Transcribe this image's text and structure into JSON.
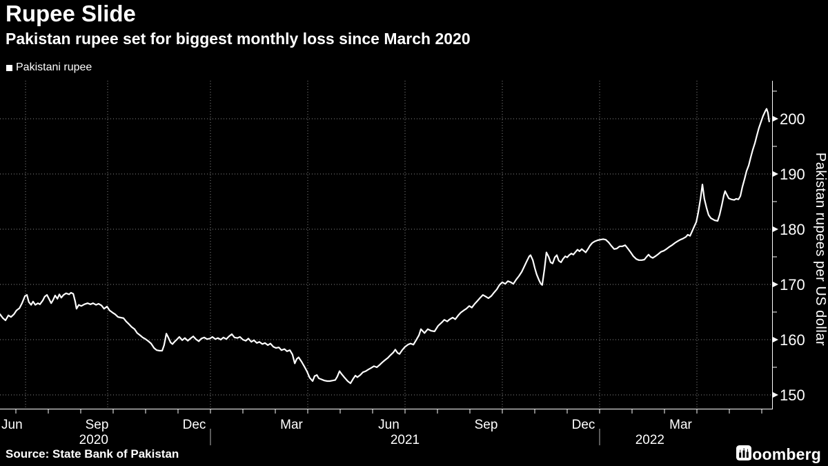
{
  "title": "Rupee Slide",
  "subtitle": "Pakistan rupee set for biggest monthly loss since March 2020",
  "legend": {
    "label": "Pakistani rupee",
    "marker_color": "#ffffff"
  },
  "source": "Source: State Bank of Pakistan",
  "brand": {
    "name": "Bloomberg",
    "logo": "bloomberg-terminal-mark"
  },
  "colors": {
    "background": "#000000",
    "line": "#ffffff",
    "grid": "#8c8c8c",
    "axis": "#ffffff",
    "text": "#ffffff"
  },
  "chart_data": {
    "type": "line",
    "series_name": "Pakistani rupee",
    "title": "Rupee Slide",
    "ylabel": "Pakistan rupees per US dollar",
    "xlabel": "",
    "x_unit": "months since 2020-06-01 (0 = Jun 1 2020, 7 = Jan 1 2021, 19 = Jan 1 2022)",
    "xlim_t": [
      0.51,
      24.34
    ],
    "ylim": [
      147.5,
      206.9
    ],
    "grid": "dotted",
    "legend_position": "top-left",
    "y_ticks": [
      150,
      160,
      170,
      180,
      190,
      200
    ],
    "y_minor_ticks": [
      155,
      165,
      175,
      185,
      195,
      205
    ],
    "x_axis": {
      "month_labels": [
        {
          "label": "Jun",
          "t": 0.5
        },
        {
          "label": "Sep",
          "t": 3.5
        },
        {
          "label": "Dec",
          "t": 6.5
        },
        {
          "label": "Mar",
          "t": 9.5
        },
        {
          "label": "Jun",
          "t": 12.5
        },
        {
          "label": "Sep",
          "t": 15.5
        },
        {
          "label": "Dec",
          "t": 18.5
        },
        {
          "label": "Mar",
          "t": 21.5
        }
      ],
      "year_labels": [
        {
          "label": "2020",
          "t": 3.4
        },
        {
          "label": "2021",
          "t": 13.0
        },
        {
          "label": "2022",
          "t": 20.55
        }
      ],
      "year_dividers_t": [
        7,
        19
      ],
      "quarter_gridlines_t": [
        1,
        4,
        7,
        10,
        13,
        16,
        19,
        22
      ],
      "month_ticks_t": [
        1,
        2,
        3,
        4,
        5,
        6,
        7,
        8,
        9,
        10,
        11,
        12,
        13,
        14,
        15,
        16,
        17,
        18,
        19,
        20,
        21,
        22,
        23,
        24
      ]
    },
    "points": [
      [
        0.51,
        164.6
      ],
      [
        0.6,
        163.9
      ],
      [
        0.68,
        163.5
      ],
      [
        0.77,
        164.4
      ],
      [
        0.85,
        164.1
      ],
      [
        0.94,
        164.6
      ],
      [
        1.02,
        165.3
      ],
      [
        1.11,
        165.7
      ],
      [
        1.19,
        166.6
      ],
      [
        1.28,
        167.9
      ],
      [
        1.34,
        168.1
      ],
      [
        1.4,
        166.8
      ],
      [
        1.47,
        166.3
      ],
      [
        1.53,
        166.9
      ],
      [
        1.6,
        166.3
      ],
      [
        1.68,
        166.6
      ],
      [
        1.74,
        166.4
      ],
      [
        1.83,
        167.1
      ],
      [
        1.89,
        167.8
      ],
      [
        1.96,
        168.1
      ],
      [
        2.02,
        167.4
      ],
      [
        2.09,
        166.6
      ],
      [
        2.15,
        167.2
      ],
      [
        2.21,
        168.0
      ],
      [
        2.28,
        167.4
      ],
      [
        2.34,
        168.2
      ],
      [
        2.4,
        167.6
      ],
      [
        2.47,
        168.1
      ],
      [
        2.55,
        168.4
      ],
      [
        2.64,
        168.2
      ],
      [
        2.7,
        168.5
      ],
      [
        2.77,
        168.3
      ],
      [
        2.83,
        166.9
      ],
      [
        2.87,
        165.6
      ],
      [
        2.94,
        166.3
      ],
      [
        3.02,
        166.1
      ],
      [
        3.11,
        166.4
      ],
      [
        3.21,
        166.6
      ],
      [
        3.3,
        166.4
      ],
      [
        3.38,
        166.6
      ],
      [
        3.47,
        166.3
      ],
      [
        3.55,
        166.5
      ],
      [
        3.64,
        166.2
      ],
      [
        3.72,
        165.6
      ],
      [
        3.81,
        166.0
      ],
      [
        3.89,
        165.3
      ],
      [
        3.98,
        164.9
      ],
      [
        4.06,
        164.6
      ],
      [
        4.15,
        164.1
      ],
      [
        4.23,
        164.0
      ],
      [
        4.32,
        163.9
      ],
      [
        4.4,
        163.3
      ],
      [
        4.49,
        162.8
      ],
      [
        4.57,
        162.3
      ],
      [
        4.66,
        161.9
      ],
      [
        4.74,
        161.2
      ],
      [
        4.83,
        160.8
      ],
      [
        4.91,
        160.4
      ],
      [
        5.0,
        160.1
      ],
      [
        5.09,
        159.7
      ],
      [
        5.17,
        159.3
      ],
      [
        5.26,
        158.5
      ],
      [
        5.34,
        158.1
      ],
      [
        5.43,
        158.0
      ],
      [
        5.51,
        158.0
      ],
      [
        5.57,
        159.0
      ],
      [
        5.64,
        161.1
      ],
      [
        5.7,
        160.4
      ],
      [
        5.77,
        159.5
      ],
      [
        5.83,
        159.2
      ],
      [
        5.89,
        159.6
      ],
      [
        5.96,
        160.0
      ],
      [
        6.04,
        160.5
      ],
      [
        6.13,
        159.9
      ],
      [
        6.21,
        160.3
      ],
      [
        6.3,
        159.8
      ],
      [
        6.38,
        160.2
      ],
      [
        6.47,
        160.6
      ],
      [
        6.55,
        160.1
      ],
      [
        6.64,
        159.7
      ],
      [
        6.72,
        160.2
      ],
      [
        6.81,
        160.4
      ],
      [
        6.89,
        160.1
      ],
      [
        6.98,
        160.2
      ],
      [
        7.06,
        160.5
      ],
      [
        7.15,
        160.1
      ],
      [
        7.23,
        160.3
      ],
      [
        7.32,
        160.0
      ],
      [
        7.4,
        160.4
      ],
      [
        7.49,
        160.1
      ],
      [
        7.57,
        160.6
      ],
      [
        7.66,
        161.0
      ],
      [
        7.74,
        160.4
      ],
      [
        7.83,
        160.3
      ],
      [
        7.91,
        160.5
      ],
      [
        8.0,
        160.0
      ],
      [
        8.09,
        159.8
      ],
      [
        8.17,
        160.2
      ],
      [
        8.26,
        159.6
      ],
      [
        8.34,
        159.9
      ],
      [
        8.43,
        159.4
      ],
      [
        8.51,
        159.6
      ],
      [
        8.6,
        159.2
      ],
      [
        8.68,
        159.4
      ],
      [
        8.77,
        159.0
      ],
      [
        8.85,
        159.3
      ],
      [
        8.94,
        158.7
      ],
      [
        9.02,
        158.5
      ],
      [
        9.11,
        158.6
      ],
      [
        9.19,
        158.1
      ],
      [
        9.28,
        158.3
      ],
      [
        9.36,
        157.9
      ],
      [
        9.45,
        158.1
      ],
      [
        9.53,
        157.3
      ],
      [
        9.6,
        155.7
      ],
      [
        9.66,
        156.5
      ],
      [
        9.72,
        156.8
      ],
      [
        9.81,
        156.0
      ],
      [
        9.89,
        155.2
      ],
      [
        9.98,
        154.2
      ],
      [
        10.06,
        153.1
      ],
      [
        10.15,
        152.5
      ],
      [
        10.21,
        153.4
      ],
      [
        10.28,
        153.6
      ],
      [
        10.34,
        153.0
      ],
      [
        10.43,
        152.8
      ],
      [
        10.51,
        152.6
      ],
      [
        10.6,
        152.5
      ],
      [
        10.68,
        152.5
      ],
      [
        10.77,
        152.6
      ],
      [
        10.85,
        152.7
      ],
      [
        10.91,
        153.3
      ],
      [
        10.98,
        154.3
      ],
      [
        11.04,
        153.8
      ],
      [
        11.11,
        153.3
      ],
      [
        11.17,
        152.9
      ],
      [
        11.23,
        152.5
      ],
      [
        11.32,
        152.1
      ],
      [
        11.4,
        152.9
      ],
      [
        11.47,
        153.5
      ],
      [
        11.53,
        153.2
      ],
      [
        11.62,
        153.6
      ],
      [
        11.7,
        154.1
      ],
      [
        11.79,
        154.3
      ],
      [
        11.87,
        154.6
      ],
      [
        11.96,
        154.9
      ],
      [
        12.04,
        155.2
      ],
      [
        12.13,
        155.0
      ],
      [
        12.21,
        155.4
      ],
      [
        12.3,
        155.9
      ],
      [
        12.38,
        156.3
      ],
      [
        12.47,
        156.7
      ],
      [
        12.55,
        157.2
      ],
      [
        12.64,
        157.7
      ],
      [
        12.7,
        158.2
      ],
      [
        12.77,
        157.6
      ],
      [
        12.83,
        157.4
      ],
      [
        12.91,
        158.1
      ],
      [
        13.0,
        158.7
      ],
      [
        13.09,
        159.1
      ],
      [
        13.17,
        159.3
      ],
      [
        13.26,
        159.1
      ],
      [
        13.34,
        159.9
      ],
      [
        13.43,
        160.8
      ],
      [
        13.49,
        161.9
      ],
      [
        13.6,
        161.2
      ],
      [
        13.7,
        161.9
      ],
      [
        13.81,
        161.6
      ],
      [
        13.91,
        161.5
      ],
      [
        14.02,
        162.5
      ],
      [
        14.13,
        163.1
      ],
      [
        14.21,
        163.6
      ],
      [
        14.3,
        163.3
      ],
      [
        14.38,
        163.7
      ],
      [
        14.47,
        164.0
      ],
      [
        14.55,
        163.7
      ],
      [
        14.64,
        164.4
      ],
      [
        14.72,
        164.9
      ],
      [
        14.81,
        165.3
      ],
      [
        14.89,
        165.6
      ],
      [
        14.98,
        166.1
      ],
      [
        15.06,
        165.8
      ],
      [
        15.15,
        166.5
      ],
      [
        15.23,
        167.0
      ],
      [
        15.32,
        167.6
      ],
      [
        15.4,
        168.1
      ],
      [
        15.49,
        167.8
      ],
      [
        15.57,
        167.5
      ],
      [
        15.66,
        167.9
      ],
      [
        15.74,
        168.5
      ],
      [
        15.83,
        169.1
      ],
      [
        15.91,
        169.9
      ],
      [
        16.0,
        170.4
      ],
      [
        16.09,
        170.1
      ],
      [
        16.17,
        170.6
      ],
      [
        16.26,
        170.4
      ],
      [
        16.34,
        170.1
      ],
      [
        16.43,
        170.9
      ],
      [
        16.51,
        171.5
      ],
      [
        16.6,
        172.3
      ],
      [
        16.68,
        173.3
      ],
      [
        16.77,
        174.4
      ],
      [
        16.83,
        175.1
      ],
      [
        16.87,
        175.3
      ],
      [
        16.94,
        174.4
      ],
      [
        17.0,
        173.0
      ],
      [
        17.06,
        171.8
      ],
      [
        17.13,
        170.8
      ],
      [
        17.19,
        170.1
      ],
      [
        17.23,
        169.9
      ],
      [
        17.3,
        172.8
      ],
      [
        17.36,
        175.8
      ],
      [
        17.43,
        175.0
      ],
      [
        17.49,
        174.0
      ],
      [
        17.55,
        173.8
      ],
      [
        17.62,
        174.9
      ],
      [
        17.68,
        175.3
      ],
      [
        17.74,
        174.3
      ],
      [
        17.81,
        174.0
      ],
      [
        17.87,
        174.6
      ],
      [
        17.94,
        175.1
      ],
      [
        18.0,
        174.9
      ],
      [
        18.06,
        175.3
      ],
      [
        18.13,
        175.6
      ],
      [
        18.19,
        175.4
      ],
      [
        18.26,
        175.9
      ],
      [
        18.32,
        176.3
      ],
      [
        18.38,
        176.0
      ],
      [
        18.45,
        176.4
      ],
      [
        18.51,
        176.1
      ],
      [
        18.57,
        175.8
      ],
      [
        18.64,
        176.4
      ],
      [
        18.7,
        177.0
      ],
      [
        18.77,
        177.5
      ],
      [
        18.85,
        177.8
      ],
      [
        18.94,
        178.0
      ],
      [
        19.02,
        178.1
      ],
      [
        19.11,
        178.2
      ],
      [
        19.19,
        178.1
      ],
      [
        19.28,
        177.6
      ],
      [
        19.36,
        177.0
      ],
      [
        19.45,
        176.4
      ],
      [
        19.53,
        176.5
      ],
      [
        19.62,
        176.9
      ],
      [
        19.7,
        176.9
      ],
      [
        19.79,
        177.1
      ],
      [
        19.87,
        176.5
      ],
      [
        19.96,
        175.8
      ],
      [
        20.04,
        175.1
      ],
      [
        20.13,
        174.6
      ],
      [
        20.21,
        174.4
      ],
      [
        20.3,
        174.4
      ],
      [
        20.38,
        174.5
      ],
      [
        20.45,
        175.0
      ],
      [
        20.51,
        175.4
      ],
      [
        20.57,
        175.0
      ],
      [
        20.64,
        174.8
      ],
      [
        20.72,
        175.1
      ],
      [
        20.81,
        175.5
      ],
      [
        20.89,
        175.9
      ],
      [
        20.98,
        176.1
      ],
      [
        21.06,
        176.4
      ],
      [
        21.15,
        176.8
      ],
      [
        21.23,
        177.1
      ],
      [
        21.32,
        177.5
      ],
      [
        21.4,
        177.8
      ],
      [
        21.49,
        178.1
      ],
      [
        21.57,
        178.3
      ],
      [
        21.66,
        178.6
      ],
      [
        21.72,
        179.0
      ],
      [
        21.79,
        178.8
      ],
      [
        21.85,
        179.6
      ],
      [
        21.91,
        180.4
      ],
      [
        21.98,
        181.3
      ],
      [
        22.04,
        183.0
      ],
      [
        22.11,
        185.5
      ],
      [
        22.17,
        188.1
      ],
      [
        22.23,
        185.5
      ],
      [
        22.3,
        183.8
      ],
      [
        22.36,
        182.6
      ],
      [
        22.43,
        182.0
      ],
      [
        22.49,
        181.8
      ],
      [
        22.55,
        181.6
      ],
      [
        22.64,
        181.5
      ],
      [
        22.7,
        182.6
      ],
      [
        22.77,
        184.4
      ],
      [
        22.83,
        186.1
      ],
      [
        22.87,
        186.9
      ],
      [
        22.91,
        186.4
      ],
      [
        22.98,
        185.6
      ],
      [
        23.06,
        185.4
      ],
      [
        23.15,
        185.3
      ],
      [
        23.21,
        185.5
      ],
      [
        23.28,
        185.4
      ],
      [
        23.34,
        186.0
      ],
      [
        23.4,
        187.6
      ],
      [
        23.47,
        189.1
      ],
      [
        23.53,
        190.5
      ],
      [
        23.6,
        191.6
      ],
      [
        23.66,
        193.0
      ],
      [
        23.72,
        194.3
      ],
      [
        23.79,
        195.6
      ],
      [
        23.85,
        197.0
      ],
      [
        23.91,
        198.3
      ],
      [
        23.98,
        199.5
      ],
      [
        24.04,
        200.5
      ],
      [
        24.11,
        201.4
      ],
      [
        24.15,
        201.8
      ],
      [
        24.19,
        201.1
      ],
      [
        24.23,
        199.5
      ]
    ]
  }
}
